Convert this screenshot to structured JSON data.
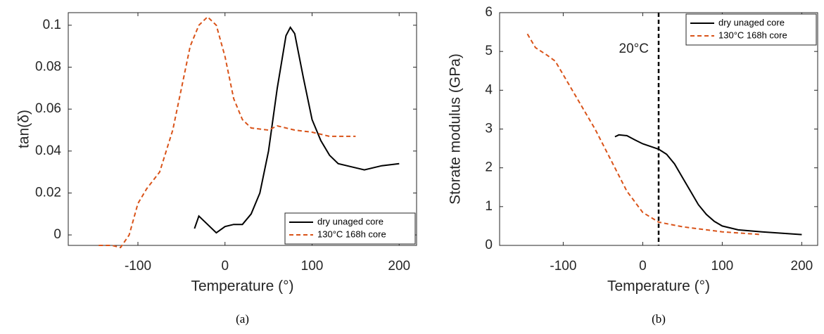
{
  "chart_data": [
    {
      "type": "line",
      "caption": "(a)",
      "xlabel": "Temperature (°)",
      "ylabel": "tan(δ)",
      "xlim": [
        -180,
        220
      ],
      "xticks": [
        -100,
        0,
        100,
        200
      ],
      "ylim": [
        -0.005,
        0.106
      ],
      "yticks": [
        0,
        0.02,
        0.04,
        0.06,
        0.08,
        0.1
      ],
      "legend": "lower right",
      "series": [
        {
          "name": "dry unaged core",
          "color": "#000000",
          "dash": false,
          "x": [
            -35,
            -30,
            -20,
            -10,
            0,
            10,
            20,
            30,
            40,
            50,
            60,
            70,
            75,
            80,
            90,
            100,
            110,
            120,
            130,
            140,
            160,
            180,
            200
          ],
          "values": [
            0.003,
            0.009,
            0.005,
            0.001,
            0.004,
            0.005,
            0.005,
            0.01,
            0.02,
            0.04,
            0.07,
            0.095,
            0.099,
            0.096,
            0.075,
            0.055,
            0.045,
            0.038,
            0.034,
            0.033,
            0.031,
            0.033,
            0.034
          ]
        },
        {
          "name": "130°C 168h core",
          "color": "#d95319",
          "dash": true,
          "x": [
            -145,
            -130,
            -120,
            -110,
            -100,
            -90,
            -75,
            -60,
            -50,
            -40,
            -30,
            -20,
            -10,
            0,
            10,
            20,
            30,
            50,
            60,
            80,
            100,
            120,
            150
          ],
          "values": [
            -0.005,
            -0.005,
            -0.006,
            0.0,
            0.015,
            0.022,
            0.03,
            0.05,
            0.07,
            0.09,
            0.1,
            0.104,
            0.1,
            0.085,
            0.065,
            0.055,
            0.051,
            0.05,
            0.052,
            0.05,
            0.049,
            0.047,
            0.047
          ]
        }
      ]
    },
    {
      "type": "line",
      "caption": "(b)",
      "xlabel": "Temperature (°)",
      "ylabel": "Storate modulus (GPa)",
      "xlim": [
        -180,
        220
      ],
      "xticks": [
        -100,
        0,
        100,
        200
      ],
      "ylim": [
        0,
        6
      ],
      "yticks": [
        0,
        1,
        2,
        3,
        4,
        5,
        6
      ],
      "legend": "upper right",
      "vline": {
        "x": 20,
        "label": "20°C"
      },
      "series": [
        {
          "name": "dry unaged core",
          "color": "#000000",
          "dash": false,
          "x": [
            -35,
            -30,
            -20,
            -10,
            0,
            10,
            20,
            30,
            40,
            50,
            60,
            70,
            80,
            90,
            100,
            120,
            150,
            200
          ],
          "values": [
            2.8,
            2.85,
            2.83,
            2.72,
            2.62,
            2.55,
            2.48,
            2.35,
            2.1,
            1.75,
            1.4,
            1.05,
            0.8,
            0.62,
            0.5,
            0.4,
            0.35,
            0.28
          ]
        },
        {
          "name": "130°C 168h core",
          "color": "#d95319",
          "dash": true,
          "x": [
            -145,
            -135,
            -120,
            -110,
            -100,
            -80,
            -60,
            -40,
            -20,
            0,
            20,
            50,
            100,
            150
          ],
          "values": [
            5.45,
            5.1,
            4.9,
            4.75,
            4.4,
            3.7,
            3.0,
            2.2,
            1.4,
            0.85,
            0.6,
            0.48,
            0.35,
            0.28
          ]
        }
      ]
    }
  ]
}
